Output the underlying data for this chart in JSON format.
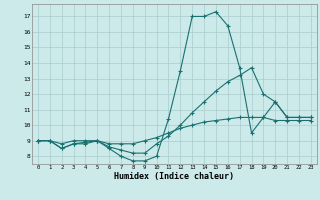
{
  "xlabel": "Humidex (Indice chaleur)",
  "bg_color": "#cceaea",
  "grid_color": "#aacccc",
  "line_color": "#1a7070",
  "xlim": [
    -0.5,
    23.5
  ],
  "ylim": [
    7.5,
    17.8
  ],
  "yticks": [
    8,
    9,
    10,
    11,
    12,
    13,
    14,
    15,
    16,
    17
  ],
  "xticks": [
    0,
    1,
    2,
    3,
    4,
    5,
    6,
    7,
    8,
    9,
    10,
    11,
    12,
    13,
    14,
    15,
    16,
    17,
    18,
    19,
    20,
    21,
    22,
    23
  ],
  "line1_x": [
    0,
    1,
    2,
    3,
    4,
    5,
    6,
    7,
    8,
    9,
    10,
    11,
    12,
    13,
    14,
    15,
    16,
    17,
    18,
    19,
    20,
    21,
    22,
    23
  ],
  "line1_y": [
    9.0,
    9.0,
    8.5,
    8.8,
    8.8,
    9.0,
    8.5,
    8.0,
    7.7,
    7.7,
    8.0,
    10.4,
    13.5,
    17.0,
    17.0,
    17.3,
    16.4,
    13.7,
    9.5,
    10.5,
    11.5,
    10.5,
    10.5,
    10.5
  ],
  "line2_x": [
    0,
    1,
    2,
    3,
    4,
    5,
    6,
    7,
    8,
    9,
    10,
    11,
    12,
    13,
    14,
    15,
    16,
    17,
    18,
    19,
    20,
    21,
    22,
    23
  ],
  "line2_y": [
    9.0,
    9.0,
    8.5,
    8.8,
    8.9,
    9.0,
    8.6,
    8.4,
    8.2,
    8.2,
    8.8,
    9.3,
    10.0,
    10.8,
    11.5,
    12.2,
    12.8,
    13.2,
    13.7,
    12.0,
    11.5,
    10.5,
    10.5,
    10.5
  ],
  "line3_x": [
    0,
    1,
    2,
    3,
    4,
    5,
    6,
    7,
    8,
    9,
    10,
    11,
    12,
    13,
    14,
    15,
    16,
    17,
    18,
    19,
    20,
    21,
    22,
    23
  ],
  "line3_y": [
    9.0,
    9.0,
    8.8,
    9.0,
    9.0,
    9.0,
    8.8,
    8.8,
    8.8,
    9.0,
    9.2,
    9.5,
    9.8,
    10.0,
    10.2,
    10.3,
    10.4,
    10.5,
    10.5,
    10.5,
    10.3,
    10.3,
    10.3,
    10.3
  ]
}
